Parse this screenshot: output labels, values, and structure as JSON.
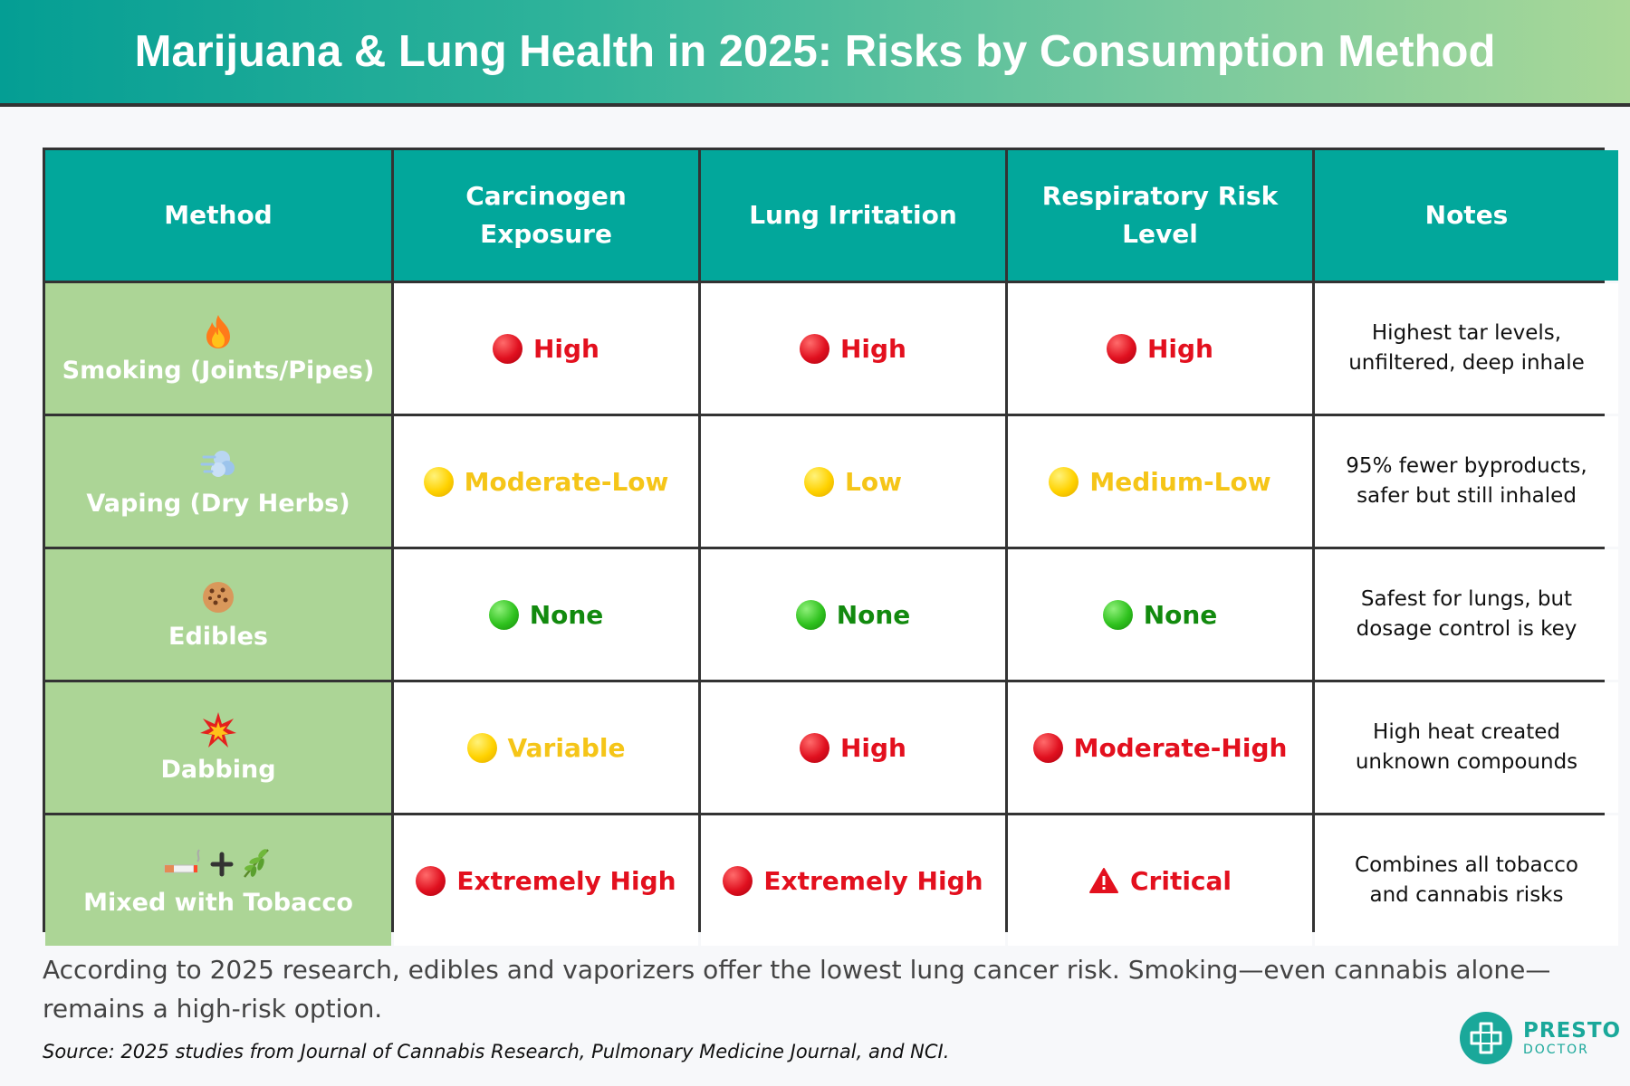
{
  "title": "Marijuana & Lung Health in 2025: Risks by Consumption Method",
  "table": {
    "headers": [
      "Method",
      "Carcinogen Exposure",
      "Lung Irritation",
      "Respiratory Risk Level",
      "Notes"
    ],
    "rows": [
      {
        "icon": "fire-icon",
        "method": "Smoking (Joints/Pipes)",
        "carcinogen": {
          "level": "red",
          "label": "High"
        },
        "irritation": {
          "level": "red",
          "label": "High"
        },
        "respiratory": {
          "level": "red",
          "label": "High"
        },
        "notes": "Highest tar levels, unfiltered, deep inhale"
      },
      {
        "icon": "dash-wind-icon",
        "method": "Vaping (Dry Herbs)",
        "carcinogen": {
          "level": "yellow",
          "label": "Moderate-Low"
        },
        "irritation": {
          "level": "yellow",
          "label": "Low"
        },
        "respiratory": {
          "level": "yellow",
          "label": "Medium-Low"
        },
        "notes": "95% fewer byproducts, safer but still inhaled"
      },
      {
        "icon": "cookie-icon",
        "method": "Edibles",
        "carcinogen": {
          "level": "green",
          "label": "None"
        },
        "irritation": {
          "level": "green",
          "label": "None"
        },
        "respiratory": {
          "level": "green",
          "label": "None"
        },
        "notes": "Safest for lungs, but dosage control is key"
      },
      {
        "icon": "collision-icon",
        "method": "Dabbing",
        "carcinogen": {
          "level": "yellow",
          "label": "Variable"
        },
        "irritation": {
          "level": "red",
          "label": "High"
        },
        "respiratory": {
          "level": "red",
          "label": "Moderate-High"
        },
        "notes": "High heat created unknown compounds"
      },
      {
        "icon": "cigarette-plus-herb-icon",
        "method": "Mixed with Tobacco",
        "carcinogen": {
          "level": "red",
          "label": "Extremely High"
        },
        "irritation": {
          "level": "red",
          "label": "Extremely High"
        },
        "respiratory": {
          "level": "warning",
          "label": "Critical"
        },
        "notes": "Combines all tobacco and cannabis risks"
      }
    ]
  },
  "summary": "According to 2025 research, edibles and vaporizers offer the lowest lung cancer risk. Smoking—even cannabis alone—remains a high-risk option.",
  "source": "Source: 2025 studies from Journal of Cannabis Research, Pulmonary Medicine Journal, and NCI.",
  "logo": {
    "line1": "PRESTO",
    "line2": "DOCTOR"
  },
  "colors": {
    "accent": "#02a79b",
    "method_bg": "#acd596",
    "high": "#e3101e",
    "moderate": "#f5c518",
    "none": "#128a0e"
  }
}
